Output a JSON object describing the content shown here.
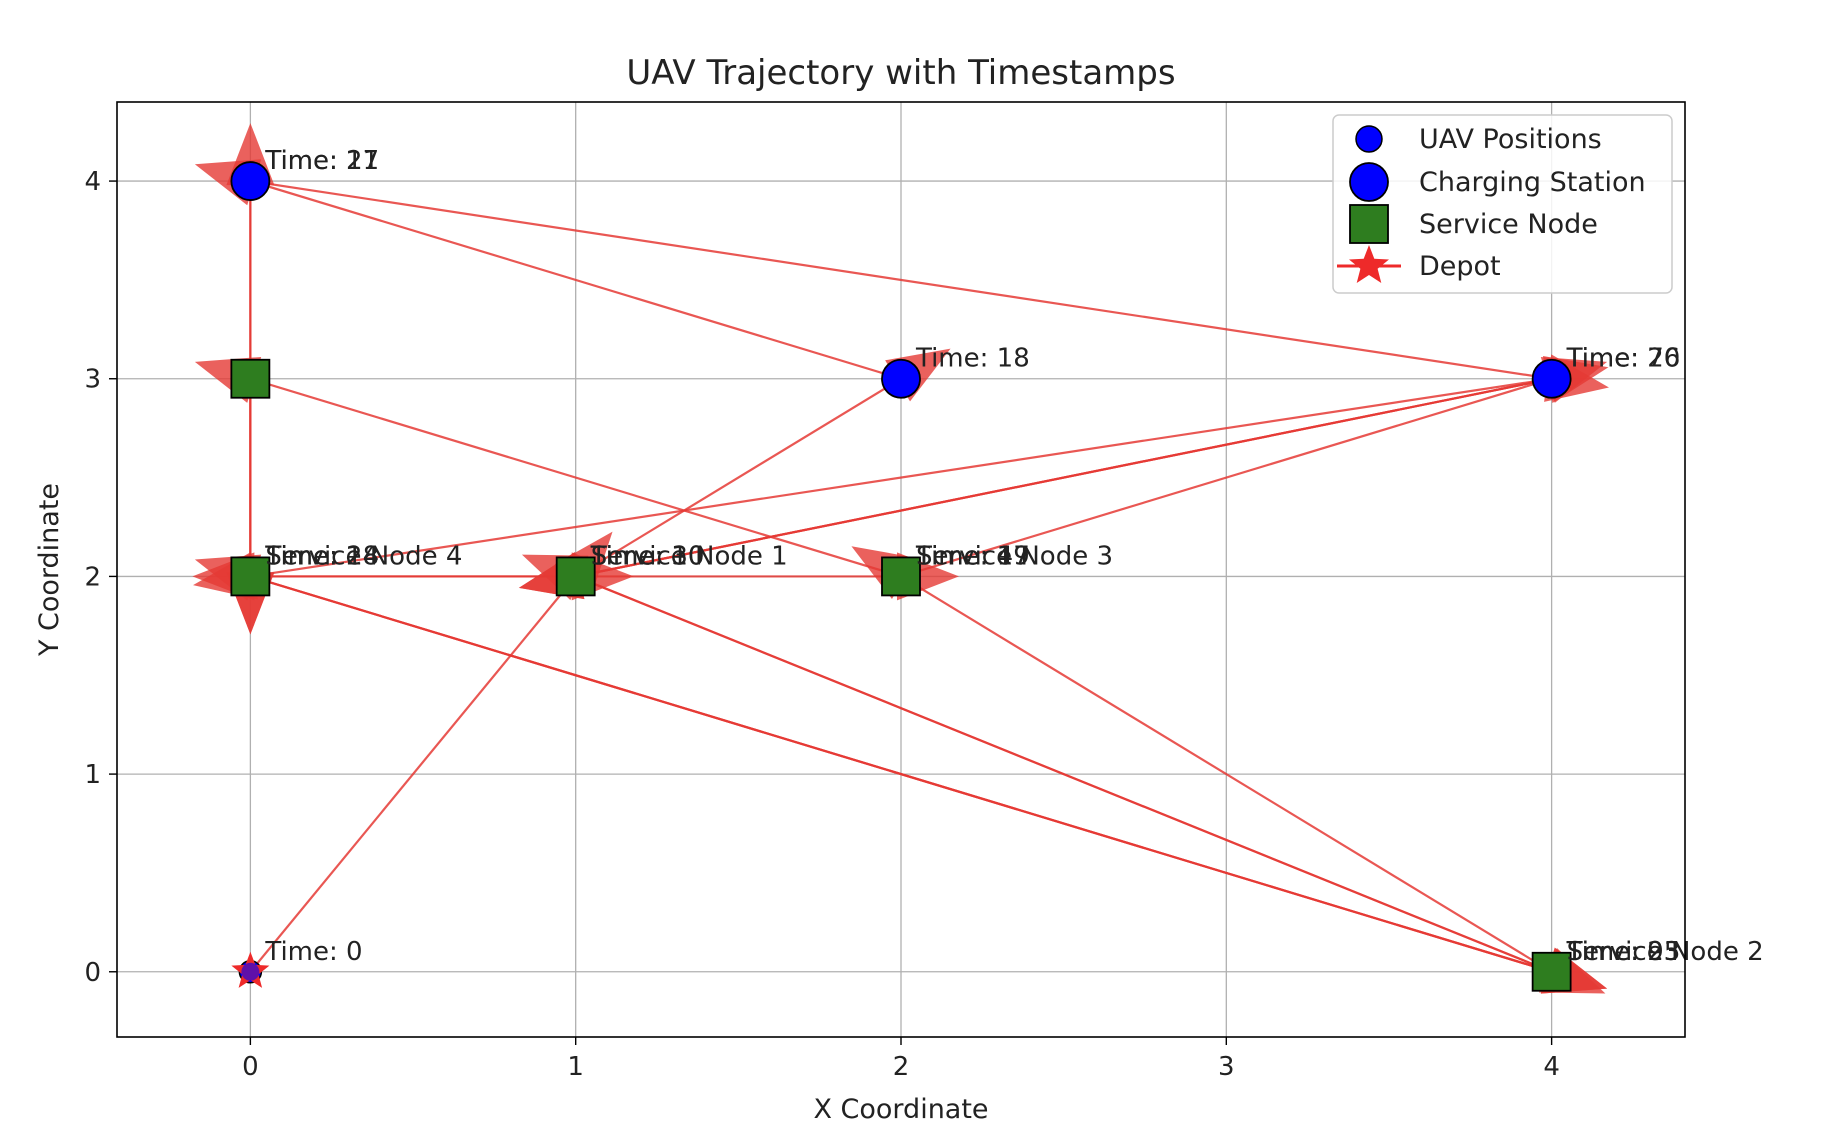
{
  "chart_data": {
    "type": "scatter",
    "title": "UAV Trajectory with Timestamps",
    "xlabel": "X Coordinate",
    "ylabel": "Y Coordinate",
    "xlim": [
      -0.41,
      4.41
    ],
    "ylim": [
      -0.33,
      4.4
    ],
    "xticks": [
      0,
      1,
      2,
      3,
      4
    ],
    "yticks": [
      0,
      1,
      2,
      3,
      4
    ],
    "grid": true,
    "legend_position": "top-right",
    "legend": [
      {
        "label": "UAV Positions",
        "marker": "small-circle"
      },
      {
        "label": "Charging Station",
        "marker": "circle"
      },
      {
        "label": "Service Node",
        "marker": "square"
      },
      {
        "label": "Depot",
        "marker": "star"
      }
    ],
    "colors": {
      "uav": "#0000ff",
      "charging": "#0000ff",
      "service": "#2e7d1f",
      "depot": "#ee2a2a",
      "arrow": "#e53935",
      "grid": "#b0b0b0"
    },
    "depot": {
      "x": 0,
      "y": 0
    },
    "charging_stations": [
      {
        "x": 0,
        "y": 4
      },
      {
        "x": 2,
        "y": 3
      },
      {
        "x": 4,
        "y": 3
      }
    ],
    "service_nodes": [
      {
        "name": "Service Node 1",
        "x": 1,
        "y": 2
      },
      {
        "name": "Service Node 2",
        "x": 4,
        "y": 0
      },
      {
        "name": "Service Node 3",
        "x": 2,
        "y": 2
      },
      {
        "name": "Service Node 4",
        "x": 0,
        "y": 2
      },
      {
        "name": "",
        "x": 0,
        "y": 3
      }
    ],
    "trajectory": [
      {
        "x": 0,
        "y": 0
      },
      {
        "x": 1,
        "y": 2
      },
      {
        "x": 2,
        "y": 3
      },
      {
        "x": 0,
        "y": 4
      },
      {
        "x": 0,
        "y": 2
      },
      {
        "x": 4,
        "y": 0
      },
      {
        "x": 1,
        "y": 2
      },
      {
        "x": 4,
        "y": 3
      },
      {
        "x": 0,
        "y": 2
      },
      {
        "x": 4,
        "y": 0
      },
      {
        "x": 2,
        "y": 2
      },
      {
        "x": 4,
        "y": 3
      },
      {
        "x": 1,
        "y": 2
      },
      {
        "x": 2,
        "y": 2
      },
      {
        "x": 0,
        "y": 3
      },
      {
        "x": 0,
        "y": 2
      },
      {
        "x": 1,
        "y": 2
      },
      {
        "x": 0,
        "y": 2
      },
      {
        "x": 0,
        "y": 4
      },
      {
        "x": 4,
        "y": 3
      },
      {
        "x": 1,
        "y": 2
      },
      {
        "x": 4,
        "y": 0
      },
      {
        "x": 0,
        "y": 2
      }
    ],
    "annotations": [
      {
        "text": "Time: 0",
        "x": 0,
        "y": 0
      },
      {
        "text": "Time: 27",
        "x": 0,
        "y": 4
      },
      {
        "text": "Time: 11",
        "x": 0,
        "y": 4
      },
      {
        "text": "Time: 18",
        "x": 2,
        "y": 3
      },
      {
        "text": "Time: 76",
        "x": 4,
        "y": 3
      },
      {
        "text": "Time: 20",
        "x": 4,
        "y": 3
      },
      {
        "text": "Service Node 4",
        "x": 0,
        "y": 2
      },
      {
        "text": "Time: 28",
        "x": 0,
        "y": 2
      },
      {
        "text": "Time: 14",
        "x": 0,
        "y": 2
      },
      {
        "text": "Service Node 1",
        "x": 1,
        "y": 2
      },
      {
        "text": "Time: 30",
        "x": 1,
        "y": 2
      },
      {
        "text": "Time: 10",
        "x": 1,
        "y": 2
      },
      {
        "text": "Service Node 3",
        "x": 2,
        "y": 2
      },
      {
        "text": "Time: 47",
        "x": 2,
        "y": 2
      },
      {
        "text": "Time: 19",
        "x": 2,
        "y": 2
      },
      {
        "text": "Service Node 2",
        "x": 4,
        "y": 0
      },
      {
        "text": "Time: 95",
        "x": 4,
        "y": 0
      },
      {
        "text": "Time: 23",
        "x": 4,
        "y": 0
      }
    ]
  }
}
